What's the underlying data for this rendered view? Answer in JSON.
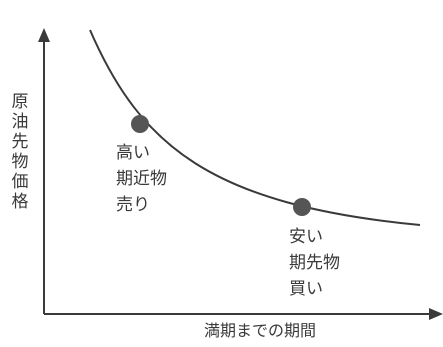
{
  "diagram": {
    "y_axis_label_chars": [
      "原",
      "油",
      "先",
      "物",
      "価",
      "格"
    ],
    "x_axis_label": "満期までの期間",
    "points": [
      {
        "label_lines": [
          "高い",
          "期近物",
          "売り"
        ]
      },
      {
        "label_lines": [
          "安い",
          "期先物",
          "買い"
        ]
      }
    ],
    "colors": {
      "line": "#3a3a3a",
      "point": "#555555",
      "text": "#3a3a3a"
    }
  }
}
